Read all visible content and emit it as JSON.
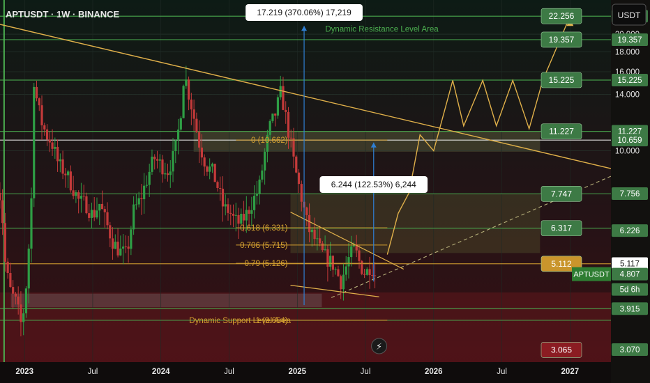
{
  "chart_data": {
    "type": "candlestick",
    "title": "APTUSDT · 1W · BINANCE",
    "currency_button": "USDT",
    "xlim": [
      2022.82,
      2027.3
    ],
    "ylim_log": [
      2.85,
      24.5
    ],
    "x_ticks": [
      {
        "label": "2023",
        "t": 2023.0
      },
      {
        "label": "Jul",
        "t": 2023.5
      },
      {
        "label": "2024",
        "t": 2024.0
      },
      {
        "label": "Jul",
        "t": 2024.5
      },
      {
        "label": "2025",
        "t": 2025.0
      },
      {
        "label": "Jul",
        "t": 2025.5
      },
      {
        "label": "2026",
        "t": 2026.0
      },
      {
        "label": "Jul",
        "t": 2026.5
      },
      {
        "label": "2027",
        "t": 2027.0
      }
    ],
    "y_ticks": [
      {
        "label": "20.000",
        "v": 20.0
      },
      {
        "label": "18.000",
        "v": 18.0
      },
      {
        "label": "16.000",
        "v": 16.0
      },
      {
        "label": "14.000",
        "v": 14.0
      },
      {
        "label": "10.000",
        "v": 10.0
      }
    ],
    "candle_anchors": [
      [
        2022.8,
        8.2
      ],
      [
        2022.83,
        7.4
      ],
      [
        2022.86,
        5.0
      ],
      [
        2022.9,
        4.3
      ],
      [
        2022.94,
        4.05
      ],
      [
        2022.98,
        3.5
      ],
      [
        2023.02,
        4.8
      ],
      [
        2023.05,
        7.5
      ],
      [
        2023.06,
        12.0
      ],
      [
        2023.07,
        15.6
      ],
      [
        2023.09,
        13.5
      ],
      [
        2023.12,
        12.0
      ],
      [
        2023.16,
        11.0
      ],
      [
        2023.2,
        10.5
      ],
      [
        2023.25,
        9.2
      ],
      [
        2023.3,
        8.8
      ],
      [
        2023.35,
        8.1
      ],
      [
        2023.4,
        7.4
      ],
      [
        2023.45,
        7.3
      ],
      [
        2023.5,
        6.8
      ],
      [
        2023.55,
        7.3
      ],
      [
        2023.6,
        6.5
      ],
      [
        2023.65,
        5.8
      ],
      [
        2023.7,
        5.5
      ],
      [
        2023.75,
        5.4
      ],
      [
        2023.8,
        7.0
      ],
      [
        2023.85,
        7.5
      ],
      [
        2023.9,
        8.5
      ],
      [
        2023.95,
        9.6
      ],
      [
        2024.0,
        9.2
      ],
      [
        2024.05,
        8.9
      ],
      [
        2024.1,
        9.8
      ],
      [
        2024.14,
        12.0
      ],
      [
        2024.17,
        16.0
      ],
      [
        2024.19,
        14.8
      ],
      [
        2024.23,
        12.8
      ],
      [
        2024.28,
        10.5
      ],
      [
        2024.33,
        9.2
      ],
      [
        2024.38,
        8.8
      ],
      [
        2024.42,
        8.0
      ],
      [
        2024.46,
        7.1
      ],
      [
        2024.5,
        7.0
      ],
      [
        2024.54,
        6.6
      ],
      [
        2024.58,
        6.5
      ],
      [
        2024.63,
        6.9
      ],
      [
        2024.68,
        7.5
      ],
      [
        2024.72,
        8.0
      ],
      [
        2024.76,
        9.8
      ],
      [
        2024.8,
        11.5
      ],
      [
        2024.84,
        12.5
      ],
      [
        2024.88,
        14.2
      ],
      [
        2024.91,
        12.5
      ],
      [
        2024.95,
        10.5
      ],
      [
        2024.98,
        9.1
      ],
      [
        2025.03,
        7.6
      ],
      [
        2025.08,
        6.3
      ],
      [
        2025.13,
        5.9
      ],
      [
        2025.17,
        5.5
      ],
      [
        2025.21,
        5.3
      ],
      [
        2025.26,
        5.1
      ],
      [
        2025.32,
        4.6
      ],
      [
        2025.38,
        5.3
      ],
      [
        2025.42,
        5.6
      ],
      [
        2025.46,
        5.1
      ],
      [
        2025.5,
        4.8
      ],
      [
        2025.54,
        5.1
      ],
      [
        2025.57,
        4.8
      ]
    ],
    "horizontal_levels": [
      {
        "v": 22.256,
        "color": "#4caf50",
        "label": "22.256"
      },
      {
        "v": 19.357,
        "color": "#4caf50",
        "label": "19.357"
      },
      {
        "v": 15.225,
        "color": "#4caf50",
        "label": "15.225"
      },
      {
        "v": 11.227,
        "color": "#4caf50",
        "label": "11.227"
      },
      {
        "v": 10.659,
        "color": "#ffffff",
        "label": "10.659"
      },
      {
        "v": 7.747,
        "color": "#4caf50",
        "label": "7.747"
      },
      {
        "v": 6.317,
        "color": "#4caf50",
        "label": "6.317"
      },
      {
        "v": 5.112,
        "color": "#d4a030",
        "label": "5.112"
      },
      {
        "v": 3.915,
        "color": "#4caf50",
        "label": "3.915"
      },
      {
        "v": 3.654,
        "color": "#4caf50",
        "label": "3.654"
      }
    ],
    "fib_levels": [
      {
        "label": "0 (10.662)",
        "v": 10.662
      },
      {
        "label": "0.618 (6.331)",
        "v": 6.331
      },
      {
        "label": "0.706 (5.715)",
        "v": 5.715
      },
      {
        "label": "0.79 (5.126)",
        "v": 5.126
      },
      {
        "label": "1 (3.654)",
        "v": 3.654
      }
    ],
    "annotations": {
      "measure_top": "17.219 (370.06%) 17,219",
      "measure_mid": "6.244 (122.53%) 6,244",
      "resistance_area": "Dynamic Resistance Level Area",
      "support_area": "Dynamic Support Level Area"
    },
    "axis_badges": [
      {
        "label": "22.256",
        "v": 22.256,
        "bg": "#3d7a45"
      },
      {
        "label": "19.357",
        "v": 19.357,
        "bg": "#3d7a45"
      },
      {
        "label": "15.225",
        "v": 15.225,
        "bg": "#3d7a45"
      },
      {
        "label": "11.231",
        "v": 11.231,
        "bg": "#3d7a45"
      },
      {
        "label": "11.227",
        "v": 11.227,
        "bg": "#3d7a45"
      },
      {
        "label": "10.659",
        "v": 10.659,
        "bg": "#3d7a45"
      },
      {
        "label": "7.756",
        "v": 7.756,
        "bg": "#3d7a45"
      },
      {
        "label": "6.226",
        "v": 6.226,
        "bg": "#3d7a45"
      },
      {
        "label": "5.117",
        "v": 5.117,
        "bg": "#ffffff"
      },
      {
        "label": "4.807",
        "v": 4.807,
        "bg": "#3d7a45"
      },
      {
        "label": "5d 6h",
        "v": 4.39,
        "bg": "#3d7a45"
      },
      {
        "label": "3.915",
        "v": 3.915,
        "bg": "#3d7a45"
      },
      {
        "label": "3.070",
        "v": 3.07,
        "bg": "#3d7a45"
      }
    ],
    "chart_badges": [
      {
        "label": "22.256",
        "v": 22.256,
        "bg": "#3d7a45"
      },
      {
        "label": "19.357",
        "v": 19.357,
        "bg": "#3d7a45"
      },
      {
        "label": "15.225",
        "v": 15.225,
        "bg": "#3d7a45"
      },
      {
        "label": "11.227",
        "v": 11.227,
        "bg": "#3d7a45"
      },
      {
        "label": "7.747",
        "v": 7.747,
        "bg": "#3d7a45"
      },
      {
        "label": "6.317",
        "v": 6.317,
        "bg": "#3d7a45"
      },
      {
        "label": "5.112",
        "v": 5.112,
        "bg": "#c9952c"
      },
      {
        "label": "3.065",
        "v": 3.065,
        "bg": "#8b1c22"
      }
    ],
    "symbol_tag": "APTUSDT",
    "projection_path": [
      [
        2025.66,
        5.4
      ],
      [
        2025.74,
        6.9
      ],
      [
        2025.82,
        7.8
      ],
      [
        2025.9,
        11.0
      ],
      [
        2026.0,
        10.0
      ],
      [
        2026.14,
        15.2
      ],
      [
        2026.22,
        11.6
      ],
      [
        2026.36,
        15.2
      ],
      [
        2026.46,
        11.6
      ],
      [
        2026.58,
        15.2
      ],
      [
        2026.7,
        11.4
      ],
      [
        2026.8,
        15.2
      ],
      [
        2027.0,
        22.256
      ]
    ],
    "colors": {
      "up": "#2e9e45",
      "down": "#c43a3a",
      "level_green": "#4caf50",
      "trend": "#e0b04a",
      "measure": "#2f7fd4"
    }
  }
}
